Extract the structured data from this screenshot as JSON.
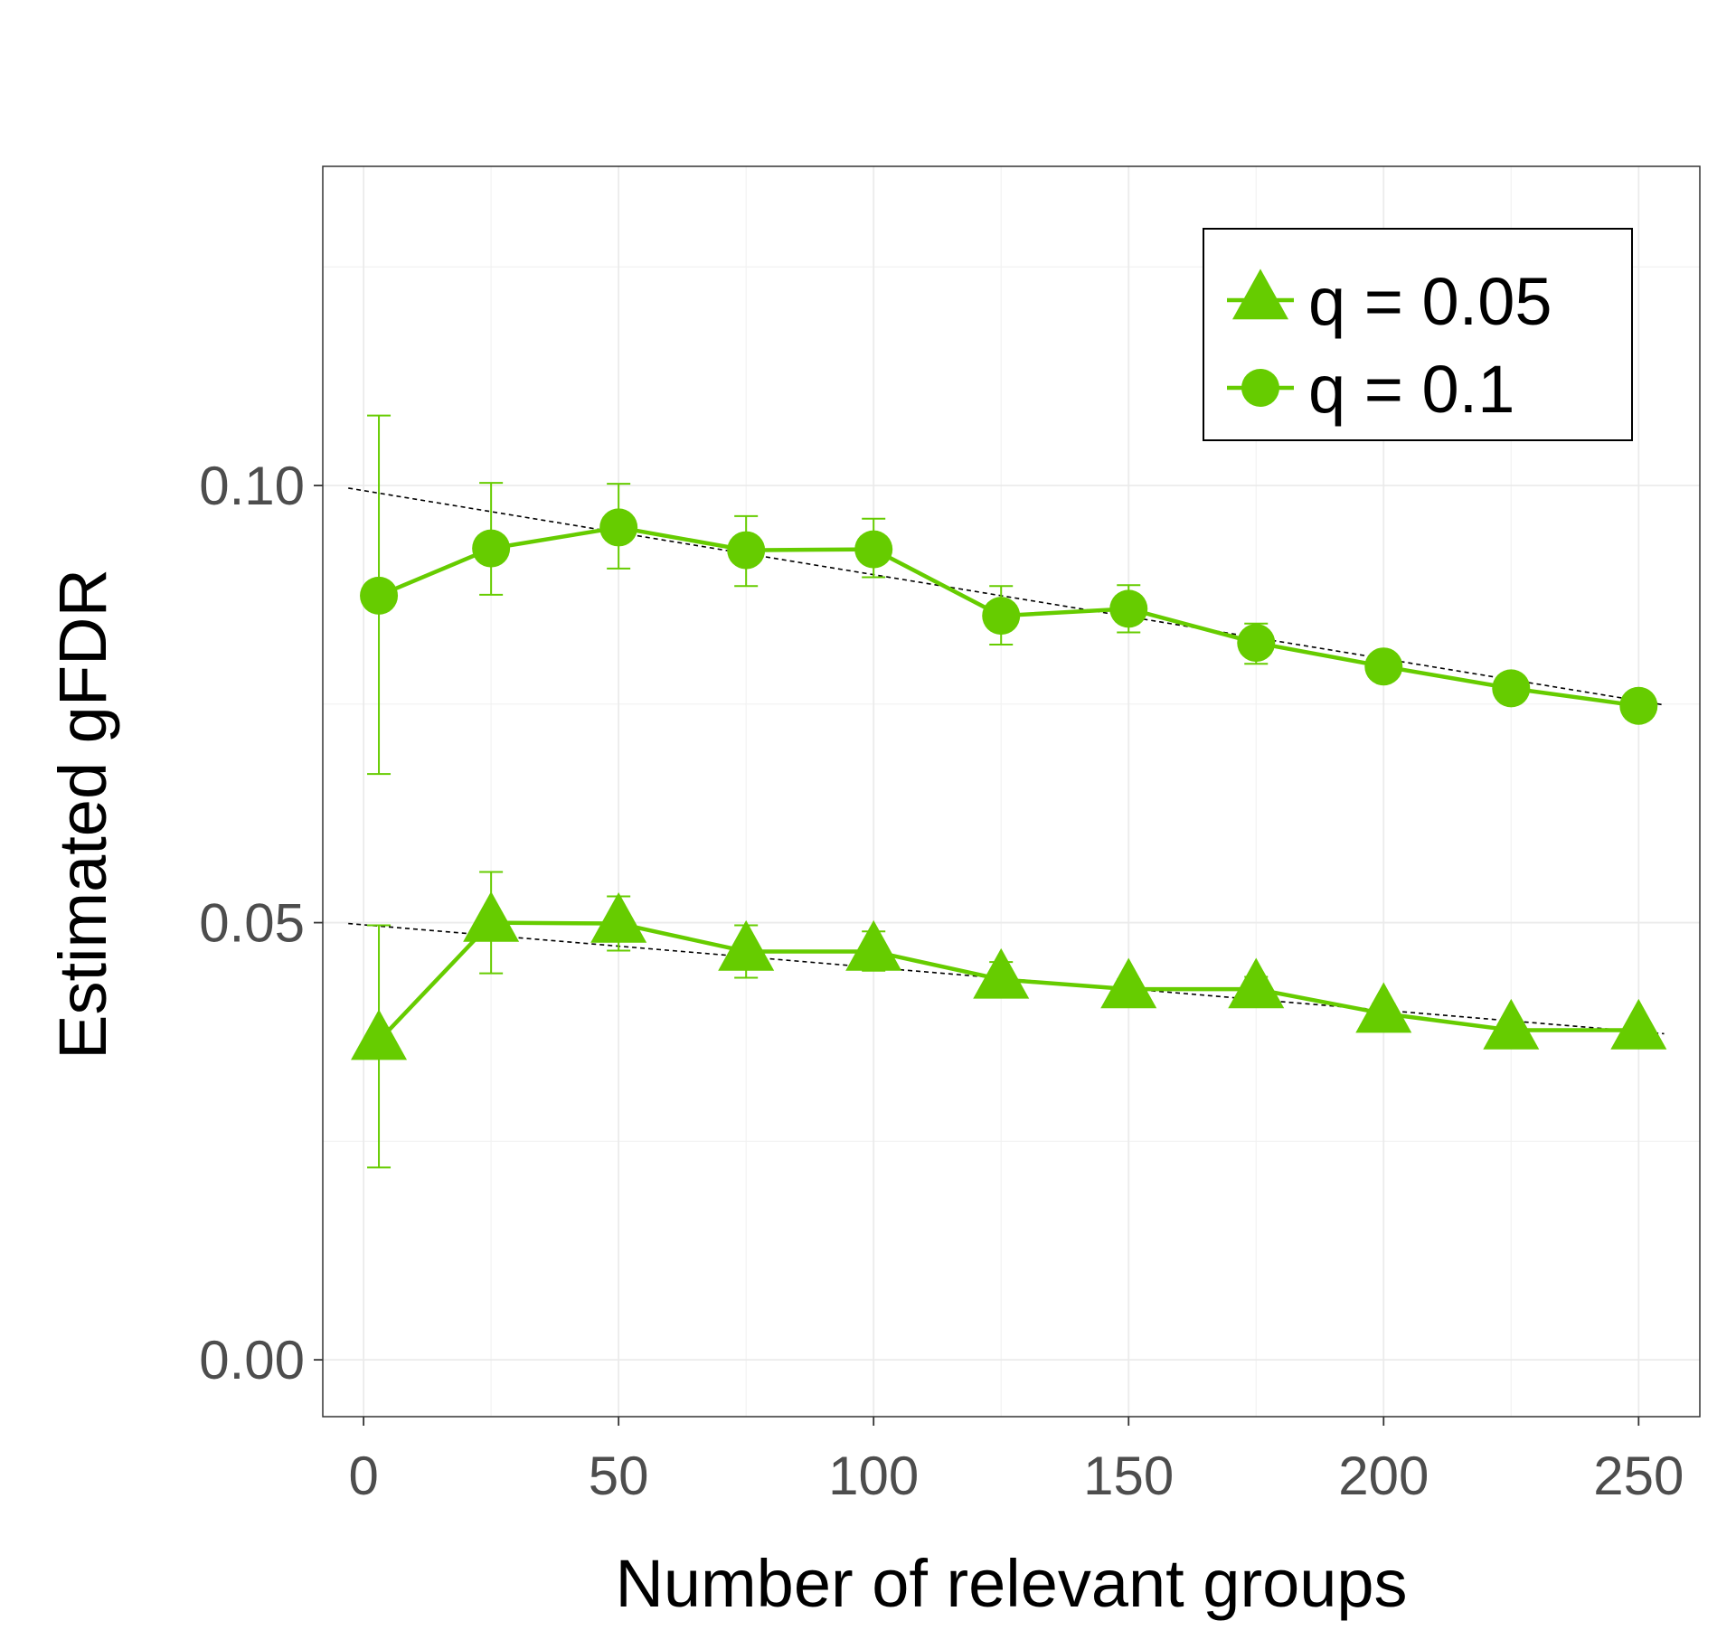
{
  "chart_data": {
    "type": "line",
    "xlabel": "Number of relevant groups",
    "ylabel": "Estimated gFDR",
    "xlim": [
      -8,
      262
    ],
    "ylim": [
      -0.0065,
      0.1365
    ],
    "x_ticks": [
      0,
      50,
      100,
      150,
      200,
      250
    ],
    "x_tick_labels": [
      "0",
      "50",
      "100",
      "150",
      "200",
      "250"
    ],
    "y_ticks": [
      0.0,
      0.05,
      0.1
    ],
    "y_tick_labels": [
      "0.00",
      "0.05",
      "0.10"
    ],
    "grid": true,
    "legend_position": "top-right",
    "x": [
      3,
      25,
      50,
      75,
      100,
      125,
      150,
      175,
      200,
      225,
      250
    ],
    "series": [
      {
        "name": "q = 0.05",
        "marker": "triangle",
        "color": "#66cc00",
        "values": [
          0.0365,
          0.05,
          0.0499,
          0.0467,
          0.0467,
          0.0435,
          0.0424,
          0.0424,
          0.0396,
          0.0377,
          0.0377
        ],
        "error_low": [
          0.022,
          0.0442,
          0.0468,
          0.0437,
          0.0445,
          0.0415,
          0.0413,
          0.041,
          0.0385,
          0.0368,
          0.0368
        ],
        "error_high": [
          0.0497,
          0.0558,
          0.053,
          0.0497,
          0.049,
          0.0455,
          0.0435,
          0.0438,
          0.0407,
          0.0386,
          0.0386
        ],
        "reference": {
          "x": [
            -3,
            255
          ],
          "y": [
            0.0499,
            0.0373
          ]
        }
      },
      {
        "name": "q = 0.1",
        "marker": "circle",
        "color": "#66cc00",
        "values": [
          0.0874,
          0.0928,
          0.0952,
          0.0926,
          0.0927,
          0.0851,
          0.0859,
          0.082,
          0.0793,
          0.0768,
          0.0748
        ],
        "error_low": [
          0.067,
          0.0875,
          0.0905,
          0.0885,
          0.0895,
          0.0818,
          0.0832,
          0.0796,
          0.0777,
          0.0752,
          0.074
        ],
        "error_high": [
          0.108,
          0.1003,
          0.1002,
          0.0965,
          0.0962,
          0.0885,
          0.0886,
          0.0842,
          0.0809,
          0.0783,
          0.0756
        ],
        "reference": {
          "x": [
            -3,
            255
          ],
          "y": [
            0.0997,
            0.0749
          ]
        }
      }
    ]
  }
}
